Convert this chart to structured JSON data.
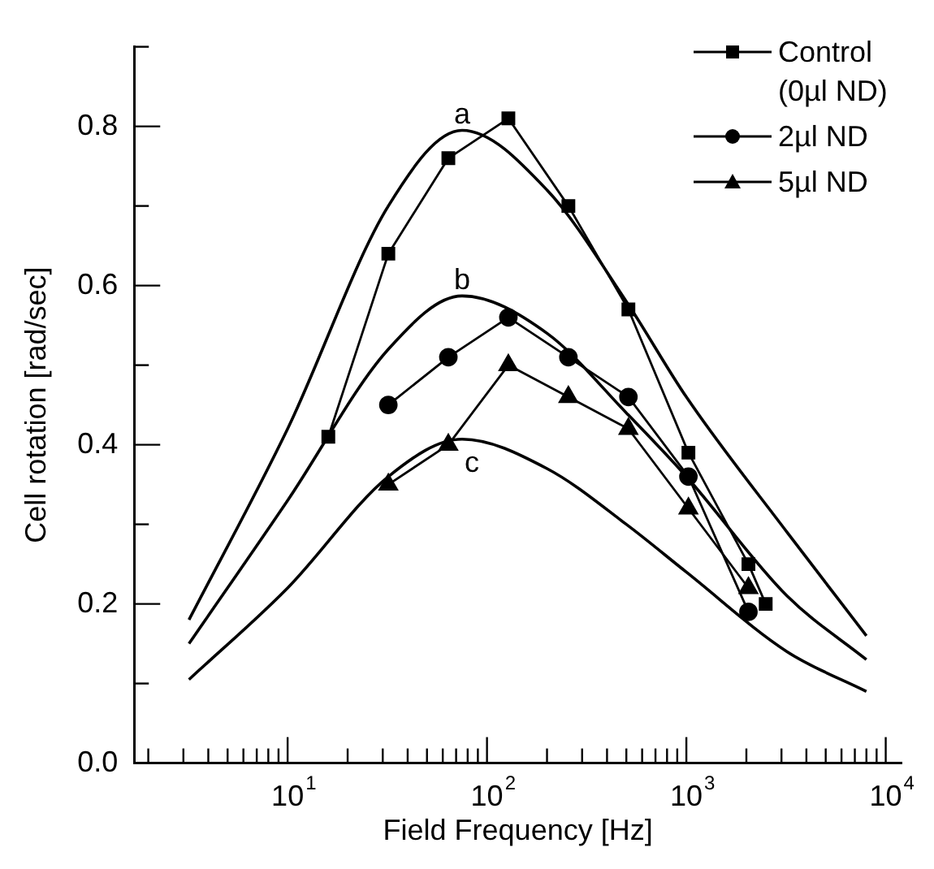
{
  "chart_data": {
    "type": "line",
    "xlabel": "Field Frequency [Hz]",
    "ylabel": "Cell rotation [rad/sec]",
    "log": "x",
    "grid": false,
    "legend": "top right",
    "xlim": [
      1.7,
      12000
    ],
    "ylim": [
      0,
      0.9
    ],
    "xticks": [
      {
        "value": 2,
        "label": null
      },
      {
        "value": 3,
        "label": null
      },
      {
        "value": 4,
        "label": null
      },
      {
        "value": 5,
        "label": null
      },
      {
        "value": 6,
        "label": null
      },
      {
        "value": 7,
        "label": null
      },
      {
        "value": 8,
        "label": null
      },
      {
        "value": 9,
        "label": null
      },
      {
        "value": 10,
        "label": "10$^{1}$"
      },
      {
        "value": 20,
        "label": null
      },
      {
        "value": 30,
        "label": null
      },
      {
        "value": 40,
        "label": null
      },
      {
        "value": 50,
        "label": null
      },
      {
        "value": 60,
        "label": null
      },
      {
        "value": 70,
        "label": null
      },
      {
        "value": 80,
        "label": null
      },
      {
        "value": 90,
        "label": null
      },
      {
        "value": 100,
        "label": "10$^{2}$"
      },
      {
        "value": 200,
        "label": null
      },
      {
        "value": 300,
        "label": null
      },
      {
        "value": 400,
        "label": null
      },
      {
        "value": 500,
        "label": null
      },
      {
        "value": 600,
        "label": null
      },
      {
        "value": 700,
        "label": null
      },
      {
        "value": 800,
        "label": null
      },
      {
        "value": 900,
        "label": null
      },
      {
        "value": 1000,
        "label": "10$^{3}$"
      },
      {
        "value": 2000,
        "label": null
      },
      {
        "value": 3000,
        "label": null
      },
      {
        "value": 4000,
        "label": null
      },
      {
        "value": 5000,
        "label": null
      },
      {
        "value": 6000,
        "label": null
      },
      {
        "value": 7000,
        "label": null
      },
      {
        "value": 8000,
        "label": null
      },
      {
        "value": 9000,
        "label": null
      },
      {
        "value": 10000,
        "label": "10$^{4}$"
      }
    ],
    "yticks": [
      {
        "value": 0,
        "label": "0.0"
      },
      {
        "value": 0.1,
        "label": null
      },
      {
        "value": 0.2,
        "label": "0.2"
      },
      {
        "value": 0.3,
        "label": null
      },
      {
        "value": 0.4,
        "label": "0.4"
      },
      {
        "value": 0.5,
        "label": null
      },
      {
        "value": 0.6,
        "label": "0.6"
      },
      {
        "value": 0.7,
        "label": null
      },
      {
        "value": 0.8,
        "label": "0.8"
      },
      {
        "value": 0.9,
        "label": null
      }
    ],
    "series": [
      {
        "name": "Control (0µl ND)",
        "color": "#000000",
        "marker": "square",
        "x": [
          16,
          32,
          64,
          128,
          256,
          512,
          1024,
          2048,
          2500
        ],
        "values": [
          0.41,
          0.64,
          0.76,
          0.81,
          0.7,
          0.57,
          0.39,
          0.25,
          0.2
        ]
      },
      {
        "name": "2µl ND",
        "color": "#000000",
        "marker": "circle",
        "x": [
          32,
          64,
          128,
          256,
          512,
          1024,
          2048
        ],
        "values": [
          0.45,
          0.51,
          0.56,
          0.51,
          0.46,
          0.36,
          0.19
        ]
      },
      {
        "name": "5µl ND",
        "color": "#000000",
        "marker": "triangle",
        "x": [
          32,
          64,
          128,
          256,
          512,
          1024,
          2048
        ],
        "values": [
          0.35,
          0.4,
          0.5,
          0.46,
          0.42,
          0.32,
          0.22
        ]
      },
      {
        "name": "a",
        "color": "#000000",
        "marker": "none",
        "x": [
          3.2,
          10,
          32,
          75,
          200,
          500,
          1000,
          3200,
          8000
        ],
        "values": [
          0.18,
          0.42,
          0.7,
          0.795,
          0.72,
          0.58,
          0.46,
          0.29,
          0.16
        ]
      },
      {
        "name": "b",
        "color": "#000000",
        "marker": "none",
        "x": [
          3.2,
          10,
          32,
          75,
          200,
          500,
          1000,
          3200,
          8000
        ],
        "values": [
          0.15,
          0.33,
          0.52,
          0.587,
          0.54,
          0.44,
          0.36,
          0.21,
          0.13
        ]
      },
      {
        "name": "c",
        "color": "#000000",
        "marker": "none",
        "x": [
          3.2,
          10,
          32,
          75,
          200,
          500,
          1000,
          3200,
          8000
        ],
        "values": [
          0.105,
          0.22,
          0.36,
          0.407,
          0.37,
          0.3,
          0.24,
          0.14,
          0.09
        ]
      }
    ]
  }
}
